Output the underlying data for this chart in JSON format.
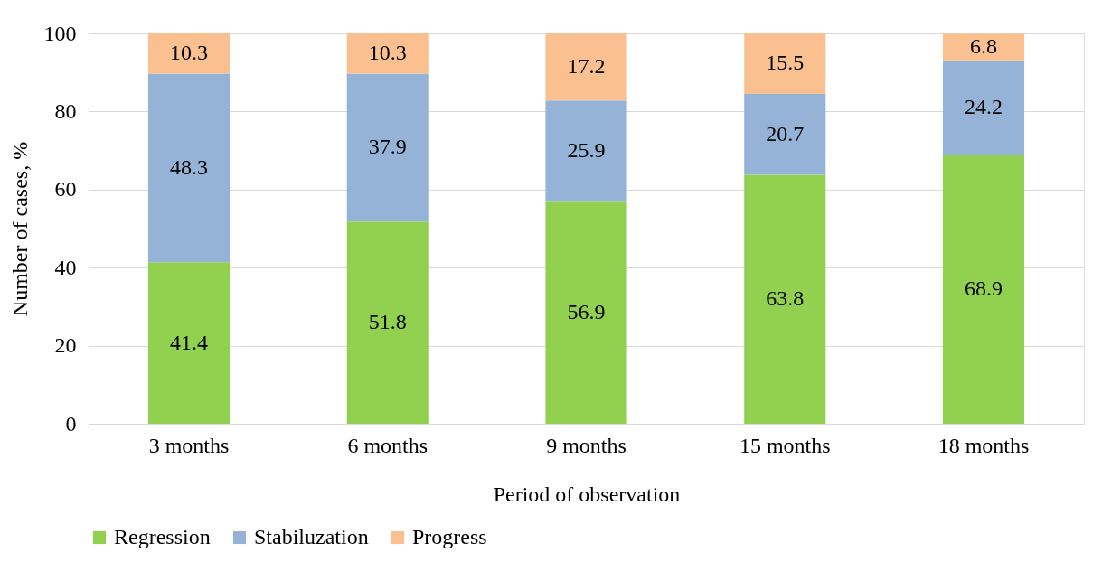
{
  "chart_data": {
    "type": "bar",
    "stacked": true,
    "xlabel": "Period of observation",
    "ylabel": "Number of cases, %",
    "categories": [
      "3 months",
      "6 months",
      "9 months",
      "15 months",
      "18 months"
    ],
    "series": [
      {
        "name": "Regression",
        "color": "#92d050",
        "values": [
          41.4,
          51.8,
          56.9,
          63.8,
          68.9
        ]
      },
      {
        "name": "Stabiluzation",
        "color": "#95b3d7",
        "values": [
          48.3,
          37.9,
          25.9,
          20.7,
          24.2
        ]
      },
      {
        "name": "Progress",
        "color": "#fac090",
        "values": [
          10.3,
          10.3,
          17.2,
          15.5,
          6.8
        ]
      }
    ],
    "ylim": [
      0,
      100
    ],
    "yticks": [
      0,
      20,
      40,
      60,
      80,
      100
    ],
    "grid": "y",
    "legend": "bottom",
    "data_labels": true
  }
}
